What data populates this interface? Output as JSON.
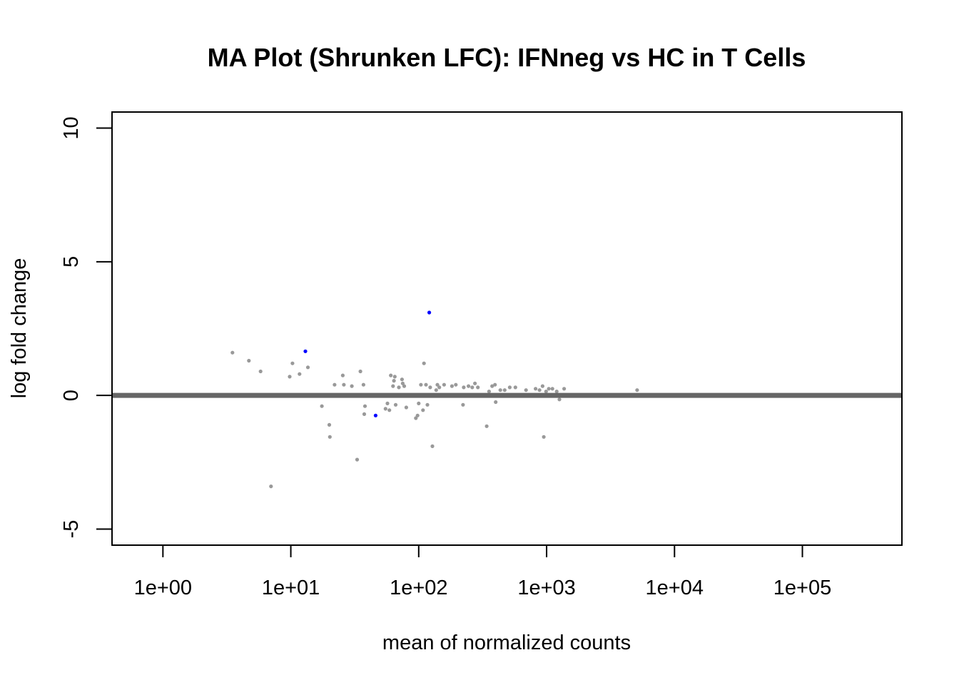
{
  "chart_data": {
    "type": "scatter",
    "title": "MA Plot (Shrunken LFC): IFNneg vs HC in T Cells",
    "xlabel": "mean of normalized counts",
    "ylabel": "log fold change",
    "x_scale": "log10",
    "xlim": [
      0.4,
      600000
    ],
    "ylim": [
      -5.6,
      10.6
    ],
    "x_ticks": [
      1,
      10,
      100,
      1000,
      10000,
      100000
    ],
    "x_tick_labels": [
      "1e+00",
      "1e+01",
      "1e+02",
      "1e+03",
      "1e+04",
      "1e+05"
    ],
    "y_ticks": [
      -5,
      0,
      5,
      10
    ],
    "y_tick_labels": [
      "-5",
      "0",
      "5",
      "10"
    ],
    "reference_line": {
      "y": 0,
      "color": "#666666"
    },
    "grid": false,
    "legend": "none",
    "series": [
      {
        "color": "#999999",
        "points": [
          [
            3.5,
            1.6
          ],
          [
            4.7,
            1.3
          ],
          [
            5.8,
            0.9
          ],
          [
            7.0,
            -3.4
          ],
          [
            9.8,
            0.7
          ],
          [
            10.3,
            1.2
          ],
          [
            11.7,
            0.8
          ],
          [
            13.6,
            1.05
          ],
          [
            17.5,
            -0.4
          ],
          [
            20.0,
            -1.1
          ],
          [
            20.2,
            -1.55
          ],
          [
            22.0,
            0.4
          ],
          [
            25.5,
            0.75
          ],
          [
            26.0,
            0.4
          ],
          [
            30.0,
            0.35
          ],
          [
            33.0,
            -2.4
          ],
          [
            35.0,
            0.9
          ],
          [
            37.0,
            0.4
          ],
          [
            37.5,
            -0.7
          ],
          [
            38.0,
            -0.4
          ],
          [
            55.0,
            -0.5
          ],
          [
            57.0,
            -0.3
          ],
          [
            59.0,
            -0.55
          ],
          [
            60.5,
            0.75
          ],
          [
            63.0,
            0.35
          ],
          [
            64.0,
            0.55
          ],
          [
            65.0,
            0.7
          ],
          [
            66.0,
            -0.35
          ],
          [
            70.0,
            0.3
          ],
          [
            74.0,
            0.6
          ],
          [
            75.0,
            0.45
          ],
          [
            77.0,
            0.35
          ],
          [
            80.0,
            -0.45
          ],
          [
            95.0,
            -0.85
          ],
          [
            98.0,
            -0.75
          ],
          [
            100.0,
            -0.3
          ],
          [
            104.0,
            0.4
          ],
          [
            108.0,
            -0.55
          ],
          [
            110.0,
            1.2
          ],
          [
            114.0,
            0.4
          ],
          [
            117.0,
            -0.35
          ],
          [
            123.0,
            0.3
          ],
          [
            128.0,
            -1.9
          ],
          [
            137.0,
            0.2
          ],
          [
            140.0,
            0.4
          ],
          [
            145.0,
            0.3
          ],
          [
            158.0,
            0.4
          ],
          [
            182.0,
            0.35
          ],
          [
            195.0,
            0.4
          ],
          [
            222.0,
            -0.35
          ],
          [
            225.0,
            0.3
          ],
          [
            245.0,
            0.35
          ],
          [
            262.0,
            0.3
          ],
          [
            275.0,
            0.45
          ],
          [
            290.0,
            0.3
          ],
          [
            340.0,
            -1.15
          ],
          [
            355.0,
            0.15
          ],
          [
            375.0,
            0.35
          ],
          [
            395.0,
            0.4
          ],
          [
            400.0,
            -0.25
          ],
          [
            435.0,
            0.2
          ],
          [
            470.0,
            0.2
          ],
          [
            515.0,
            0.3
          ],
          [
            570.0,
            0.3
          ],
          [
            690.0,
            0.2
          ],
          [
            820.0,
            0.25
          ],
          [
            880.0,
            0.2
          ],
          [
            930.0,
            0.35
          ],
          [
            950.0,
            -1.55
          ],
          [
            990.0,
            0.15
          ],
          [
            1040.0,
            0.25
          ],
          [
            1110.0,
            0.25
          ],
          [
            1200.0,
            0.15
          ],
          [
            1260.0,
            -0.15
          ],
          [
            1370.0,
            0.25
          ],
          [
            5100.0,
            0.2
          ]
        ]
      },
      {
        "color": "#0000ff",
        "points": [
          [
            13.0,
            1.65
          ],
          [
            46.0,
            -0.75
          ],
          [
            121.0,
            3.1
          ]
        ]
      }
    ]
  }
}
